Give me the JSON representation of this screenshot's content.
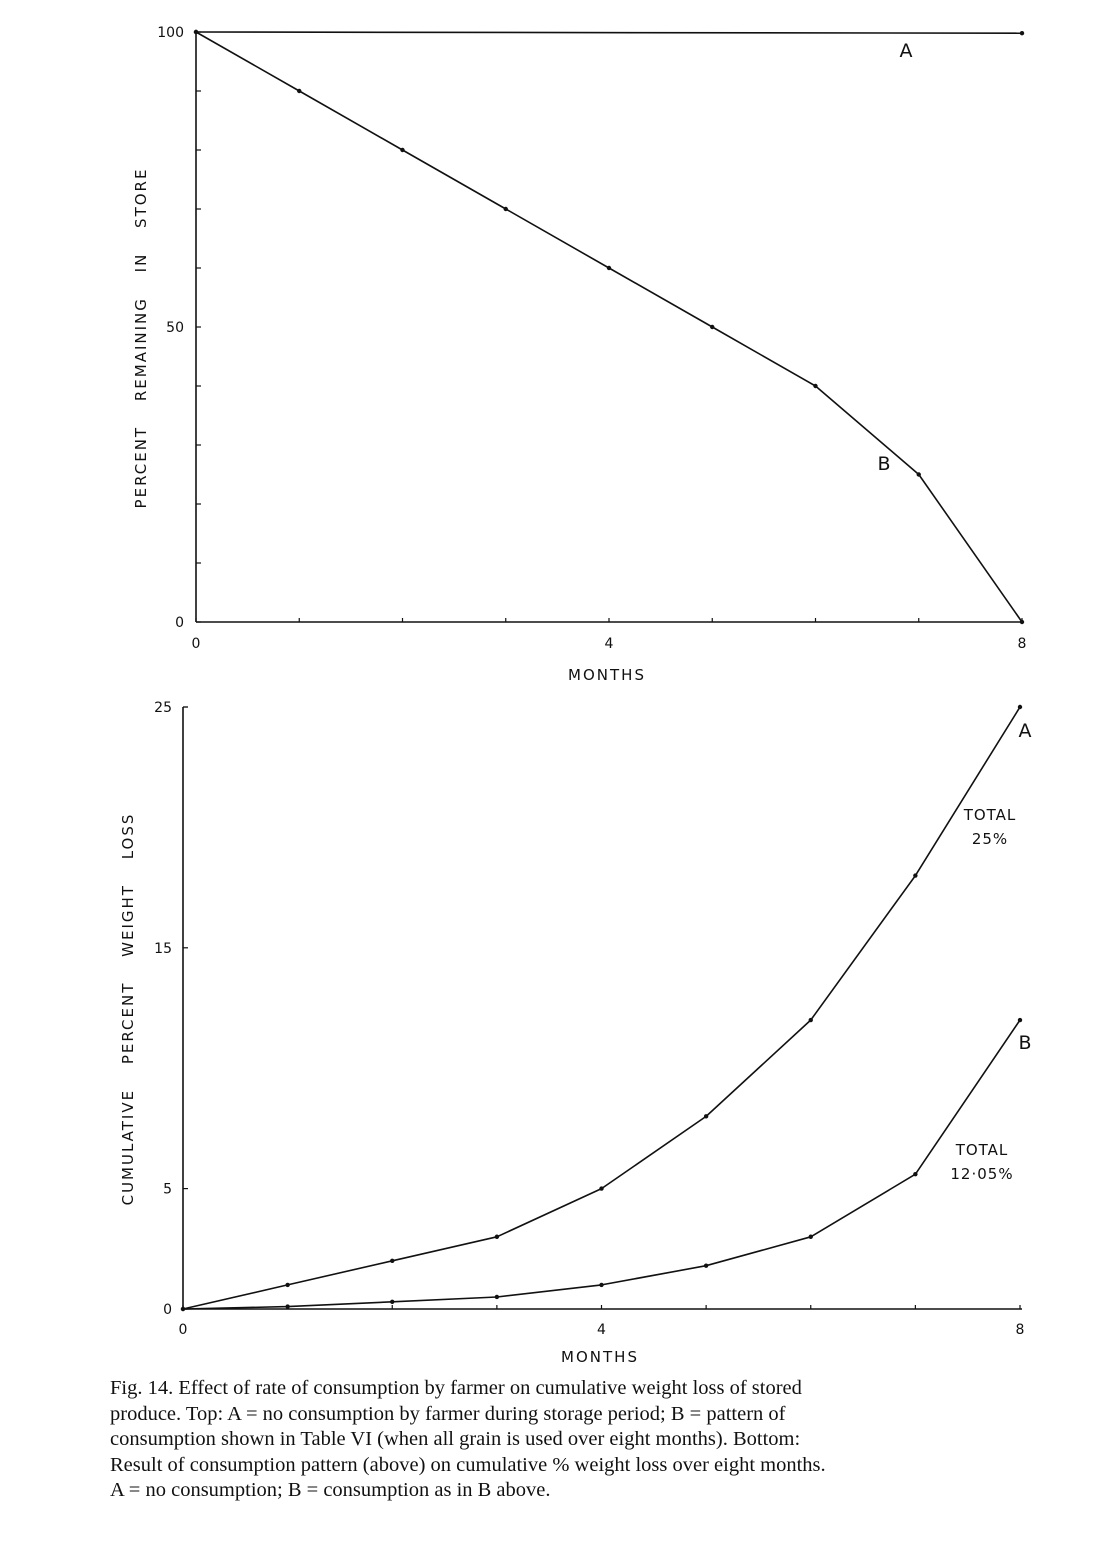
{
  "chart_data": [
    {
      "type": "line",
      "xlabel": "MONTHS",
      "ylabel": "PERCENT REMAINING IN STORE",
      "xlim": [
        0,
        8
      ],
      "ylim": [
        0,
        100
      ],
      "x_ticks": [
        "0",
        "4",
        "8"
      ],
      "y_ticks": [
        "0",
        "50",
        "100"
      ],
      "grid": false,
      "series": [
        {
          "name": "A",
          "x": [
            0,
            8
          ],
          "y": [
            100,
            99.8
          ]
        },
        {
          "name": "B",
          "x": [
            0,
            1,
            2,
            3,
            4,
            5,
            6,
            7,
            8
          ],
          "y": [
            100,
            90,
            80,
            70,
            60,
            50,
            40,
            25,
            0
          ]
        }
      ]
    },
    {
      "type": "line",
      "xlabel": "MONTHS",
      "ylabel": "CUMULATIVE PERCENT WEIGHT LOSS",
      "xlim": [
        0,
        8
      ],
      "ylim": [
        0,
        25
      ],
      "x_ticks": [
        "0",
        "4",
        "8"
      ],
      "y_ticks": [
        "0",
        "5",
        "15",
        "25"
      ],
      "grid": false,
      "series": [
        {
          "name": "A",
          "x": [
            0,
            1,
            2,
            3,
            4,
            5,
            6,
            7,
            8
          ],
          "y": [
            0,
            1,
            2,
            3,
            5,
            8,
            12,
            18,
            25
          ]
        },
        {
          "name": "B",
          "x": [
            0,
            1,
            2,
            3,
            4,
            5,
            6,
            7,
            8
          ],
          "y": [
            0,
            0.1,
            0.3,
            0.5,
            1,
            1.8,
            3,
            5.6,
            12
          ]
        }
      ],
      "annotations": [
        {
          "series": "A",
          "lines": [
            "TOTAL",
            "25%"
          ]
        },
        {
          "series": "B",
          "lines": [
            "TOTAL",
            "12·05%"
          ]
        }
      ]
    }
  ],
  "caption": {
    "lines": [
      "Fig. 14.  Effect of rate of consumption by farmer on cumulative weight loss of stored",
      "produce. Top: A = no consumption by farmer during storage period; B = pattern of",
      "consumption shown in Table VI (when all grain is used over eight months). Bottom:",
      "Result of consumption pattern (above) on cumulative % weight loss over eight months.",
      "A = no consumption; B = consumption as in B above."
    ]
  }
}
